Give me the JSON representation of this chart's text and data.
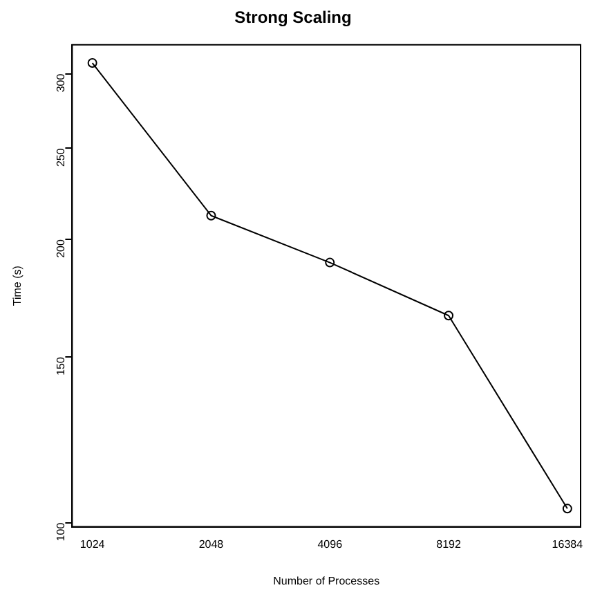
{
  "chart_data": {
    "type": "line",
    "title": "Strong Scaling",
    "xlabel": "Number of Processes",
    "ylabel": "Time (s)",
    "x": [
      1024,
      2048,
      4096,
      8192,
      16384
    ],
    "series": [
      {
        "color": "#000000",
        "values": [
          308,
          212,
          189,
          166,
          103.5
        ]
      }
    ],
    "log": "xy",
    "xlim": [
      910,
      17700
    ],
    "ylim": [
      99,
      322
    ],
    "xticks": [
      1024,
      2048,
      4096,
      8192,
      16384
    ],
    "yticks": [
      100,
      150,
      200,
      250,
      300
    ],
    "grid": false,
    "legend": false,
    "marker": "circle",
    "line_style": "solid"
  }
}
